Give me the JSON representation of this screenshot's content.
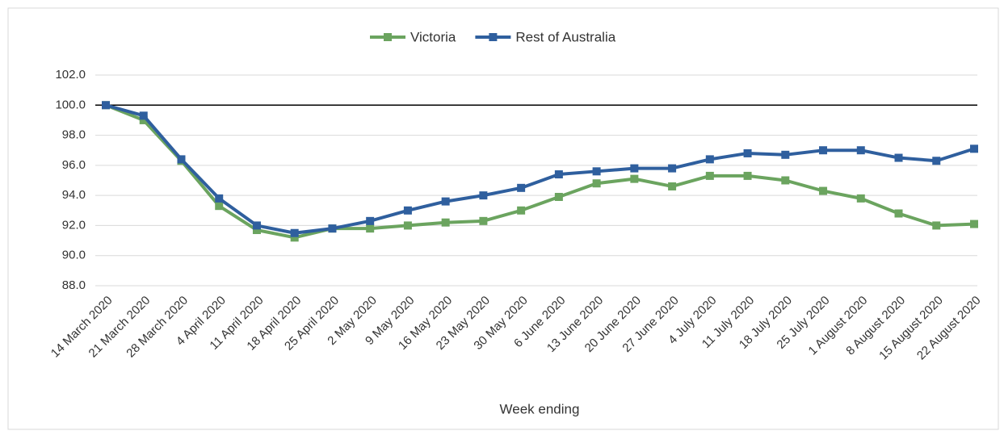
{
  "chart_data": {
    "type": "line",
    "x_label": "Week ending",
    "categories": [
      "14 March 2020",
      "21 March 2020",
      "28 March 2020",
      "4 April 2020",
      "11 April 2020",
      "18 April 2020",
      "25 April 2020",
      "2 May 2020",
      "9 May 2020",
      "16 May 2020",
      "23 May 2020",
      "30 May 2020",
      "6 June 2020",
      "13 June 2020",
      "20 June 2020",
      "27 June 2020",
      "4 July 2020",
      "11 July 2020",
      "18 July 2020",
      "25 July 2020",
      "1 August 2020",
      "8 August 2020",
      "15 August 2020",
      "22 August 2020"
    ],
    "series": [
      {
        "name": "Victoria",
        "color": "#6ba45f",
        "values": [
          100.0,
          99.0,
          96.3,
          93.3,
          91.7,
          91.2,
          91.8,
          91.8,
          92.0,
          92.2,
          92.3,
          93.0,
          93.9,
          94.8,
          95.1,
          94.6,
          95.3,
          95.3,
          95.0,
          94.3,
          93.8,
          92.8,
          92.0,
          92.1
        ]
      },
      {
        "name": "Rest of Australia",
        "color": "#2f5f9e",
        "values": [
          100.0,
          99.3,
          96.4,
          93.8,
          92.0,
          91.5,
          91.8,
          92.3,
          93.0,
          93.6,
          94.0,
          94.5,
          95.4,
          95.6,
          95.8,
          95.8,
          96.4,
          96.8,
          96.7,
          97.0,
          97.0,
          96.5,
          96.3,
          97.1
        ]
      }
    ],
    "ylim": [
      88,
      102
    ],
    "yticks": [
      {
        "value": 88,
        "label": "88.0"
      },
      {
        "value": 90,
        "label": "90.0"
      },
      {
        "value": 92,
        "label": "92.0"
      },
      {
        "value": 94,
        "label": "94.0"
      },
      {
        "value": 96,
        "label": "96.0"
      },
      {
        "value": 98,
        "label": "98.0"
      },
      {
        "value": 100,
        "label": "100.0"
      },
      {
        "value": 102,
        "label": "102.0"
      }
    ],
    "reference_line": 100,
    "grid": true,
    "legend": "top"
  }
}
